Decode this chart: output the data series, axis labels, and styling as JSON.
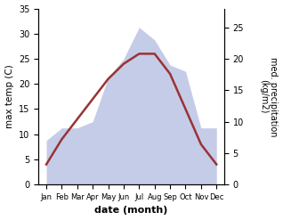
{
  "months": [
    "Jan",
    "Feb",
    "Mar",
    "Apr",
    "May",
    "Jun",
    "Jul",
    "Aug",
    "Sep",
    "Oct",
    "Nov",
    "Dec"
  ],
  "temp": [
    4,
    9,
    13,
    17,
    21,
    24,
    26,
    26,
    22,
    15,
    8,
    4
  ],
  "precip": [
    7,
    9,
    9,
    10,
    17,
    20,
    25,
    23,
    19,
    18,
    9,
    9
  ],
  "temp_color": "#993333",
  "precip_fill_color": "#c5cce8",
  "precip_edge_color": "#aab4d8",
  "temp_ylim": [
    0,
    35
  ],
  "precip_ylim": [
    0,
    28
  ],
  "temp_yticks": [
    0,
    5,
    10,
    15,
    20,
    25,
    30,
    35
  ],
  "precip_yticks": [
    0,
    5,
    10,
    15,
    20,
    25
  ],
  "xlabel": "date (month)",
  "ylabel_left": "max temp (C)",
  "ylabel_right": "med. precipitation\n(kg/m2)"
}
